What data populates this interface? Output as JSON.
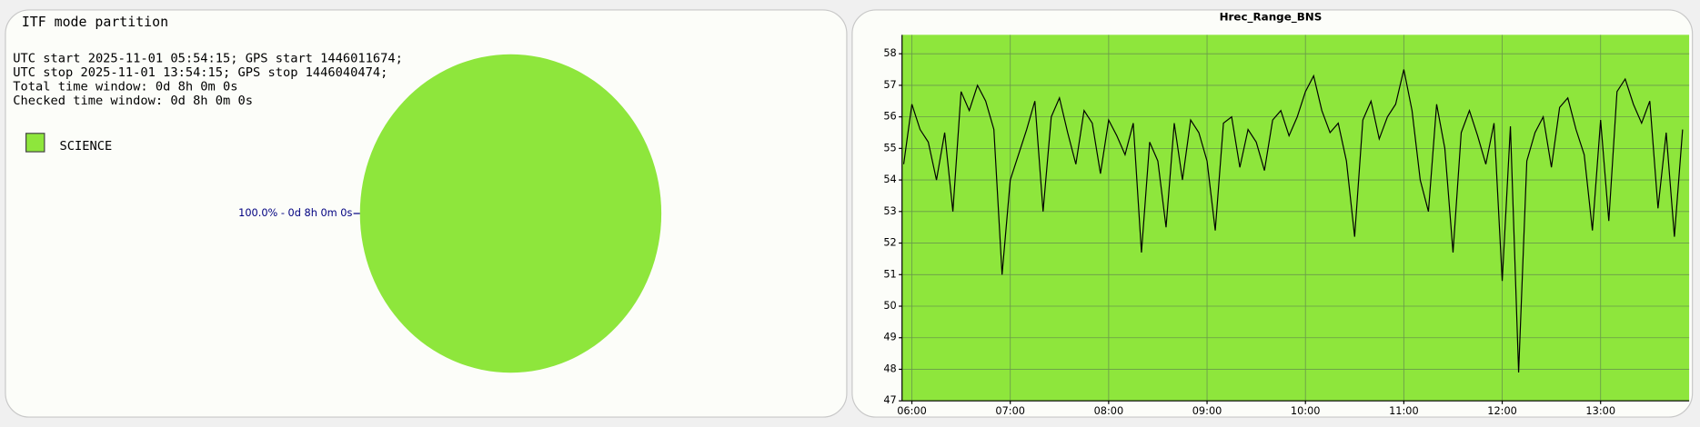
{
  "chart_data": [
    {
      "type": "pie",
      "title": "ITF mode partition",
      "annotations": [
        "UTC start 2025-11-01 05:54:15; GPS start 1446011674;",
        "UTC stop 2025-11-01 13:54:15; GPS stop 1446040474;",
        "Total time window: 0d 8h 0m 0s",
        "Checked time window: 0d 8h 0m 0s"
      ],
      "categories": [
        "SCIENCE"
      ],
      "values": [
        100
      ],
      "value_labels": [
        "100.0% - 0d 8h 0m 0s"
      ],
      "colors": [
        "#8ee63c"
      ]
    },
    {
      "type": "line",
      "title": "Hrec_Range_BNS",
      "color": "#8ee63c",
      "grid": true,
      "x": [
        "05:55",
        "06:00",
        "06:05",
        "06:10",
        "06:15",
        "06:20",
        "06:25",
        "06:30",
        "06:35",
        "06:40",
        "06:45",
        "06:50",
        "06:55",
        "07:00",
        "07:05",
        "07:10",
        "07:15",
        "07:20",
        "07:25",
        "07:30",
        "07:35",
        "07:40",
        "07:45",
        "07:50",
        "07:55",
        "08:00",
        "08:05",
        "08:10",
        "08:15",
        "08:20",
        "08:25",
        "08:30",
        "08:35",
        "08:40",
        "08:45",
        "08:50",
        "08:55",
        "09:00",
        "09:05",
        "09:10",
        "09:15",
        "09:20",
        "09:25",
        "09:30",
        "09:35",
        "09:40",
        "09:45",
        "09:50",
        "09:55",
        "10:00",
        "10:05",
        "10:10",
        "10:15",
        "10:20",
        "10:25",
        "10:30",
        "10:35",
        "10:40",
        "10:45",
        "10:50",
        "10:55",
        "11:00",
        "11:05",
        "11:10",
        "11:15",
        "11:20",
        "11:25",
        "11:30",
        "11:35",
        "11:40",
        "11:45",
        "11:50",
        "11:55",
        "12:00",
        "12:05",
        "12:10",
        "12:15",
        "12:20",
        "12:25",
        "12:30",
        "12:35",
        "12:40",
        "12:45",
        "12:50",
        "12:55",
        "13:00",
        "13:05",
        "13:10",
        "13:15",
        "13:20",
        "13:25",
        "13:30",
        "13:35",
        "13:40",
        "13:45",
        "13:50"
      ],
      "series": [
        {
          "name": "Hrec_Range_BNS",
          "color": "#000000",
          "values": [
            54.5,
            56.4,
            55.6,
            55.2,
            54.0,
            55.5,
            53.0,
            56.8,
            56.2,
            57.0,
            56.5,
            55.6,
            51.0,
            54.0,
            54.8,
            55.6,
            56.5,
            53.0,
            56.0,
            56.6,
            55.5,
            54.5,
            56.2,
            55.8,
            54.2,
            55.9,
            55.4,
            54.8,
            55.8,
            51.7,
            55.2,
            54.6,
            52.5,
            55.8,
            54.0,
            55.9,
            55.5,
            54.6,
            52.4,
            55.8,
            56.0,
            54.4,
            55.6,
            55.2,
            54.3,
            55.9,
            56.2,
            55.4,
            56.0,
            56.8,
            57.3,
            56.2,
            55.5,
            55.8,
            54.6,
            52.2,
            55.9,
            56.5,
            55.3,
            56.0,
            56.4,
            57.5,
            56.2,
            54.0,
            53.0,
            56.4,
            55.0,
            51.7,
            55.5,
            56.2,
            55.4,
            54.5,
            55.8,
            50.8,
            55.7,
            47.9,
            54.6,
            55.5,
            56.0,
            54.4,
            56.3,
            56.6,
            55.6,
            54.8,
            52.4,
            55.9,
            52.7,
            56.8,
            57.2,
            56.4,
            55.8,
            56.5,
            53.1,
            55.5,
            52.2,
            55.6
          ]
        }
      ],
      "xlim": [
        "05:54",
        "13:54"
      ],
      "xticks": [
        "06:00",
        "07:00",
        "08:00",
        "09:00",
        "10:00",
        "11:00",
        "12:00",
        "13:00"
      ],
      "ylim": [
        47,
        58.6
      ],
      "yticks": [
        47,
        48,
        49,
        50,
        51,
        52,
        53,
        54,
        55,
        56,
        57,
        58
      ]
    }
  ]
}
